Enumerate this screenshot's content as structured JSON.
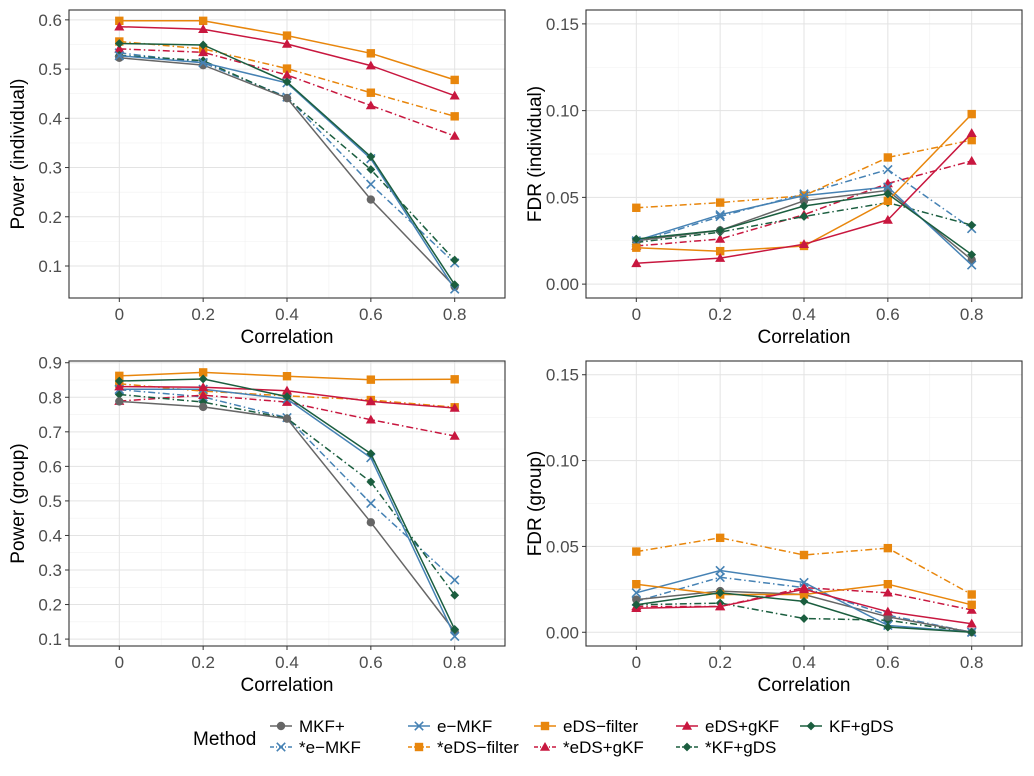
{
  "chart_data": [
    {
      "type": "line",
      "xlabel": "Correlation",
      "ylabel": "Power (individual)",
      "x": [
        0,
        0.2,
        0.4,
        0.6,
        0.8
      ],
      "x_tick_labels": [
        "0",
        "0.2",
        "0.4",
        "0.6",
        "0.8"
      ],
      "xlim": [
        -0.12,
        0.92
      ],
      "ylim": [
        0.035,
        0.62
      ],
      "y_ticks": [
        0.1,
        0.2,
        0.3,
        0.4,
        0.5,
        0.6
      ],
      "y_tick_labels": [
        "0.1",
        "0.2",
        "0.3",
        "0.4",
        "0.5",
        "0.6"
      ],
      "grid": true,
      "series": [
        {
          "name": "MKF+",
          "values": [
            0.523,
            0.508,
            0.441,
            0.235,
            0.058
          ]
        },
        {
          "name": "e−MKF",
          "values": [
            0.527,
            0.513,
            0.472,
            0.318,
            0.053
          ]
        },
        {
          "name": "eDS−filter",
          "values": [
            0.598,
            0.598,
            0.568,
            0.532,
            0.478
          ]
        },
        {
          "name": "eDS+gKF",
          "values": [
            0.586,
            0.581,
            0.551,
            0.507,
            0.446
          ]
        },
        {
          "name": "KF+gDS",
          "values": [
            0.552,
            0.549,
            0.474,
            0.322,
            0.062
          ]
        },
        {
          "name": "*e−MKF",
          "values": [
            0.533,
            0.513,
            0.443,
            0.266,
            0.106
          ]
        },
        {
          "name": "*eDS−filter",
          "values": [
            0.556,
            0.541,
            0.501,
            0.452,
            0.404
          ]
        },
        {
          "name": "*eDS+gKF",
          "values": [
            0.541,
            0.534,
            0.488,
            0.426,
            0.364
          ]
        },
        {
          "name": "*KF+gDS",
          "values": [
            0.528,
            0.517,
            0.441,
            0.296,
            0.112
          ]
        }
      ]
    },
    {
      "type": "line",
      "xlabel": "Correlation",
      "ylabel": "FDR (individual)",
      "x": [
        0,
        0.2,
        0.4,
        0.6,
        0.8
      ],
      "x_tick_labels": [
        "0",
        "0.2",
        "0.4",
        "0.6",
        "0.8"
      ],
      "xlim": [
        -0.12,
        0.92
      ],
      "ylim": [
        -0.008,
        0.158
      ],
      "y_ticks": [
        0.0,
        0.05,
        0.1,
        0.15
      ],
      "y_tick_labels": [
        "0.00",
        "0.05",
        "0.10",
        "0.15"
      ],
      "grid": true,
      "series": [
        {
          "name": "MKF+",
          "values": [
            0.025,
            0.031,
            0.048,
            0.054,
            0.014
          ]
        },
        {
          "name": "e−MKF",
          "values": [
            0.025,
            0.04,
            0.051,
            0.056,
            0.011
          ]
        },
        {
          "name": "eDS−filter",
          "values": [
            0.021,
            0.019,
            0.022,
            0.048,
            0.098
          ]
        },
        {
          "name": "eDS+gKF",
          "values": [
            0.012,
            0.015,
            0.023,
            0.037,
            0.087
          ]
        },
        {
          "name": "KF+gDS",
          "values": [
            0.026,
            0.031,
            0.045,
            0.052,
            0.017
          ]
        },
        {
          "name": "*e−MKF",
          "values": [
            0.024,
            0.039,
            0.052,
            0.066,
            0.032
          ]
        },
        {
          "name": "*eDS−filter",
          "values": [
            0.044,
            0.047,
            0.051,
            0.073,
            0.083
          ]
        },
        {
          "name": "*eDS+gKF",
          "values": [
            0.022,
            0.026,
            0.04,
            0.058,
            0.071
          ]
        },
        {
          "name": "*KF+gDS",
          "values": [
            0.024,
            0.03,
            0.039,
            0.047,
            0.034
          ]
        }
      ]
    },
    {
      "type": "line",
      "xlabel": "Correlation",
      "ylabel": "Power (group)",
      "x": [
        0,
        0.2,
        0.4,
        0.6,
        0.8
      ],
      "x_tick_labels": [
        "0",
        "0.2",
        "0.4",
        "0.6",
        "0.8"
      ],
      "xlim": [
        -0.12,
        0.92
      ],
      "ylim": [
        0.08,
        0.905
      ],
      "y_ticks": [
        0.1,
        0.2,
        0.3,
        0.4,
        0.5,
        0.6,
        0.7,
        0.8,
        0.9
      ],
      "y_tick_labels": [
        "0.1",
        "0.2",
        "0.3",
        "0.4",
        "0.5",
        "0.6",
        "0.7",
        "0.8",
        "0.9"
      ],
      "grid": true,
      "series": [
        {
          "name": "MKF+",
          "values": [
            0.788,
            0.772,
            0.738,
            0.438,
            0.122
          ]
        },
        {
          "name": "e−MKF",
          "values": [
            0.823,
            0.823,
            0.795,
            0.625,
            0.108
          ]
        },
        {
          "name": "eDS−filter",
          "values": [
            0.862,
            0.872,
            0.861,
            0.851,
            0.852
          ]
        },
        {
          "name": "eDS+gKF",
          "values": [
            0.831,
            0.829,
            0.819,
            0.788,
            0.769
          ]
        },
        {
          "name": "KF+gDS",
          "values": [
            0.847,
            0.853,
            0.802,
            0.637,
            0.128
          ]
        },
        {
          "name": "*e−MKF",
          "values": [
            0.822,
            0.801,
            0.741,
            0.493,
            0.271
          ]
        },
        {
          "name": "*eDS−filter",
          "values": [
            0.839,
            0.818,
            0.804,
            0.792,
            0.771
          ]
        },
        {
          "name": "*eDS+gKF",
          "values": [
            0.789,
            0.806,
            0.786,
            0.735,
            0.688
          ]
        },
        {
          "name": "*KF+gDS",
          "values": [
            0.808,
            0.786,
            0.739,
            0.555,
            0.227
          ]
        }
      ]
    },
    {
      "type": "line",
      "xlabel": "Correlation",
      "ylabel": "FDR (group)",
      "x": [
        0,
        0.2,
        0.4,
        0.6,
        0.8
      ],
      "x_tick_labels": [
        "0",
        "0.2",
        "0.4",
        "0.6",
        "0.8"
      ],
      "xlim": [
        -0.12,
        0.92
      ],
      "ylim": [
        -0.008,
        0.158
      ],
      "y_ticks": [
        0.0,
        0.05,
        0.1,
        0.15
      ],
      "y_tick_labels": [
        "0.00",
        "0.05",
        "0.10",
        "0.15"
      ],
      "grid": true,
      "series": [
        {
          "name": "MKF+",
          "values": [
            0.019,
            0.024,
            0.022,
            0.009,
            0.0
          ]
        },
        {
          "name": "e−MKF",
          "values": [
            0.023,
            0.036,
            0.029,
            0.004,
            0.0
          ]
        },
        {
          "name": "eDS−filter",
          "values": [
            0.028,
            0.022,
            0.022,
            0.028,
            0.016
          ]
        },
        {
          "name": "eDS+gKF",
          "values": [
            0.014,
            0.015,
            0.025,
            0.012,
            0.005
          ]
        },
        {
          "name": "KF+gDS",
          "values": [
            0.016,
            0.023,
            0.018,
            0.003,
            0.0
          ]
        },
        {
          "name": "*e−MKF",
          "values": [
            0.018,
            0.032,
            0.026,
            0.01,
            0.0
          ]
        },
        {
          "name": "*eDS−filter",
          "values": [
            0.047,
            0.055,
            0.045,
            0.049,
            0.022
          ]
        },
        {
          "name": "*eDS+gKF",
          "values": [
            0.015,
            0.015,
            0.026,
            0.023,
            0.013
          ]
        },
        {
          "name": "*KF+gDS",
          "values": [
            0.016,
            0.017,
            0.008,
            0.007,
            0.0
          ]
        }
      ]
    }
  ],
  "series_styles": {
    "MKF+": {
      "color": "#666666",
      "dash": "solid",
      "marker": "circle"
    },
    "e−MKF": {
      "color": "#4682b4",
      "dash": "solid",
      "marker": "x"
    },
    "eDS−filter": {
      "color": "#e8860c",
      "dash": "solid",
      "marker": "square"
    },
    "eDS+gKF": {
      "color": "#c8173f",
      "dash": "solid",
      "marker": "triangle"
    },
    "KF+gDS": {
      "color": "#1b5e3f",
      "dash": "solid",
      "marker": "diamond"
    },
    "*e−MKF": {
      "color": "#4682b4",
      "dash": "dashdot",
      "marker": "x"
    },
    "*eDS−filter": {
      "color": "#e8860c",
      "dash": "dashdot",
      "marker": "square"
    },
    "*eDS+gKF": {
      "color": "#c8173f",
      "dash": "dashdot",
      "marker": "triangle"
    },
    "*KF+gDS": {
      "color": "#1b5e3f",
      "dash": "dashdot",
      "marker": "diamond"
    }
  },
  "legend": {
    "title": "Method",
    "placement": "bottom",
    "rows": [
      [
        "MKF+",
        "e−MKF",
        "eDS−filter",
        "eDS+gKF",
        "KF+gDS"
      ],
      [
        "*e−MKF",
        "*eDS−filter",
        "*eDS+gKF",
        "*KF+gDS"
      ]
    ]
  }
}
